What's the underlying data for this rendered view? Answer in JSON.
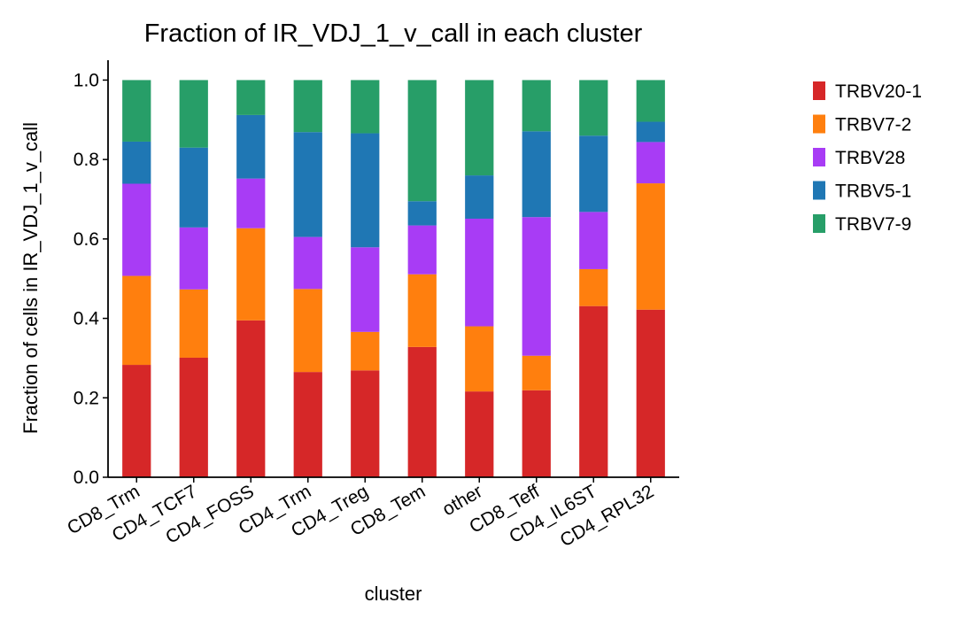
{
  "chart_data": {
    "type": "bar",
    "stacked": true,
    "title": "Fraction of IR_VDJ_1_v_call in each cluster",
    "xlabel": "cluster",
    "ylabel": "Fraction of cells in IR_VDJ_1_v_call",
    "ylim": [
      0,
      1.05
    ],
    "yticks": [
      "0.0",
      "0.2",
      "0.4",
      "0.6",
      "0.8",
      "1.0"
    ],
    "legend_position": "right",
    "categories": [
      "CD8_Trm",
      "CD4_TCF7",
      "CD4_FOSS",
      "CD4_Trm",
      "CD4_Treg",
      "CD8_Tem",
      "other",
      "CD8_Teff",
      "CD4_IL6ST",
      "CD4_RPL32"
    ],
    "series": [
      {
        "name": "TRBV20-1",
        "color": "#d62728",
        "values": [
          0.283,
          0.301,
          0.395,
          0.265,
          0.269,
          0.328,
          0.216,
          0.219,
          0.431,
          0.422
        ]
      },
      {
        "name": "TRBV7-2",
        "color": "#ff7f0e",
        "values": [
          0.224,
          0.172,
          0.232,
          0.209,
          0.097,
          0.183,
          0.164,
          0.087,
          0.093,
          0.318
        ]
      },
      {
        "name": "TRBV28",
        "color": "#a83cf5",
        "values": [
          0.232,
          0.156,
          0.125,
          0.131,
          0.213,
          0.123,
          0.271,
          0.349,
          0.144,
          0.104
        ]
      },
      {
        "name": "TRBV5-1",
        "color": "#1f77b4",
        "values": [
          0.106,
          0.201,
          0.16,
          0.264,
          0.287,
          0.061,
          0.109,
          0.216,
          0.192,
          0.051
        ]
      },
      {
        "name": "TRBV7-9",
        "color": "#279e68",
        "values": [
          0.155,
          0.17,
          0.088,
          0.131,
          0.134,
          0.305,
          0.24,
          0.129,
          0.14,
          0.105
        ]
      }
    ]
  }
}
